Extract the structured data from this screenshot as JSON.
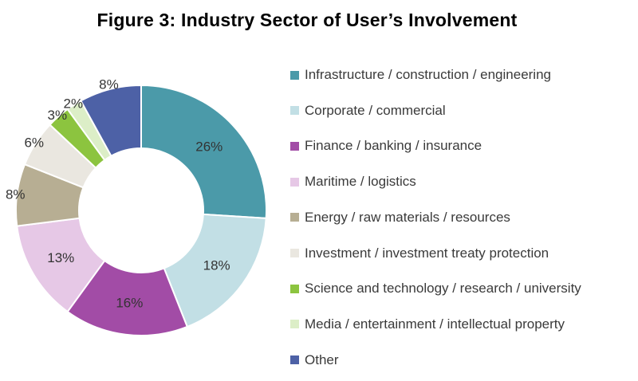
{
  "title": "Figure 3: Industry Sector of User’s Involvement",
  "chart_data": {
    "type": "pie",
    "donut": true,
    "title": "Figure 3: Industry Sector of User’s Involvement",
    "legend_position": "right",
    "unit": "%",
    "slices": [
      {
        "label": "Infrastructure / construction / engineering",
        "value": 26,
        "display": "26%",
        "color": "#4b9aa9"
      },
      {
        "label": "Corporate / commercial",
        "value": 18,
        "display": "18%",
        "color": "#c2dfe5"
      },
      {
        "label": "Finance / banking / insurance",
        "value": 16,
        "display": "16%",
        "color": "#a24ca6"
      },
      {
        "label": "Maritime / logistics",
        "value": 13,
        "display": "13%",
        "color": "#e6c8e6"
      },
      {
        "label": "Energy / raw materials / resources",
        "value": 8,
        "display": "8%",
        "color": "#b7ae93"
      },
      {
        "label": "Investment / investment treaty protection",
        "value": 6,
        "display": "6%",
        "color": "#eae7e0"
      },
      {
        "label": "Science and technology / research / university",
        "value": 3,
        "display": "3%",
        "color": "#8cc43f"
      },
      {
        "label": "Media / entertainment / intellectual property",
        "value": 2,
        "display": "2%",
        "color": "#dceec7"
      },
      {
        "label": "Other",
        "value": 8,
        "display": "8%",
        "color": "#4d61a6"
      }
    ]
  }
}
